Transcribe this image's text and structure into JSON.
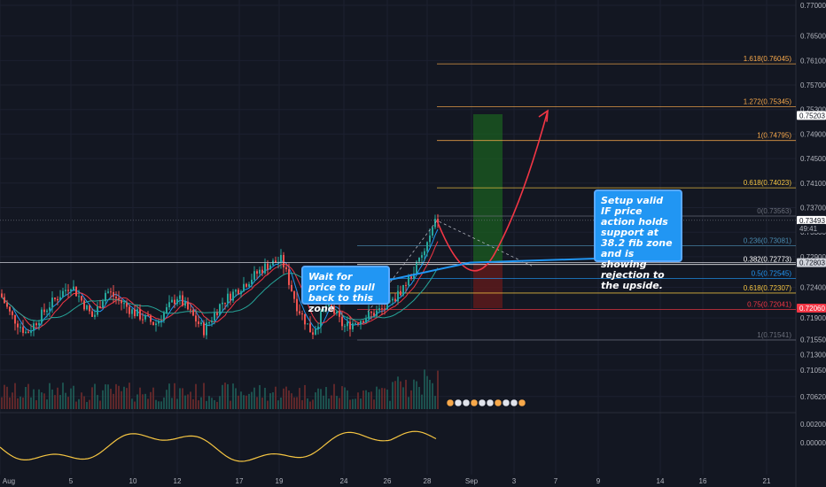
{
  "chart_data": {
    "type": "candlestick",
    "title": "",
    "y_axis_ticks": [
      "0.77000",
      "0.76500",
      "0.76100",
      "0.75700",
      "0.75300",
      "0.74900",
      "0.74500",
      "0.74100",
      "0.73700",
      "0.73300",
      "0.72900",
      "0.72400",
      "0.71900",
      "0.71550",
      "0.71300",
      "0.71050",
      "0.70620"
    ],
    "x_axis_ticks": [
      "Aug",
      "5",
      "10",
      "12",
      "17",
      "19",
      "24",
      "26",
      "28",
      "Sep",
      "3",
      "7",
      "9",
      "14",
      "16",
      "21"
    ],
    "ylim": [
      0.7045,
      0.7715
    ],
    "price_labels": [
      {
        "text": "0.75203",
        "color": "#131722",
        "bg": "#ffffff"
      },
      {
        "text": "0.73493",
        "color": "#131722",
        "bg": "#ffffff"
      },
      {
        "text": "49:41",
        "color": "#b2b5be",
        "bg": "#131722"
      },
      {
        "text": "0.72803",
        "color": "#131722",
        "bg": "#d1d4dc"
      },
      {
        "text": "0.72060",
        "color": "#ffffff",
        "bg": "#f23645"
      }
    ],
    "fib_levels": [
      {
        "label": "1.618(0.76045)",
        "price": 0.76045,
        "color": "#f7a84a"
      },
      {
        "label": "1.272(0.75345)",
        "price": 0.75345,
        "color": "#f7a84a"
      },
      {
        "label": "1(0.74795)",
        "price": 0.74795,
        "color": "#f7a84a"
      },
      {
        "label": "0.618(0.74023)",
        "price": 0.74023,
        "color": "#f5c542"
      },
      {
        "label": "0(0.73563)",
        "price": 0.73563,
        "color": "#6b6f7b"
      },
      {
        "label": "0.236(0.73081)",
        "price": 0.73081,
        "color": "#4a8bb0"
      },
      {
        "label": "0.382(0.72773)",
        "price": 0.72773,
        "color": "#ffffff"
      },
      {
        "label": "0.5(0.72545)",
        "price": 0.72545,
        "color": "#2196f3"
      },
      {
        "label": "0.618(0.72307)",
        "price": 0.72307,
        "color": "#f5c542"
      },
      {
        "label": "0.75(0.72041)",
        "price": 0.72041,
        "color": "#f23645"
      },
      {
        "label": "1(0.71541)",
        "price": 0.71541,
        "color": "#6b6f7b"
      }
    ],
    "oscillator_ticks": [
      "0.00200",
      "0.00000"
    ]
  },
  "annotations": {
    "left_note": "Wait for price to pull back to this zone",
    "right_note": "Setup valid IF price action holds support at 38.2 fib zone and is showing rejection to the upside."
  },
  "colors": {
    "background": "#131722",
    "up": "#26a69a",
    "down": "#ef5350",
    "callout": "#2196f3",
    "projection": "#f23645",
    "oscillator": "#f5c542"
  }
}
